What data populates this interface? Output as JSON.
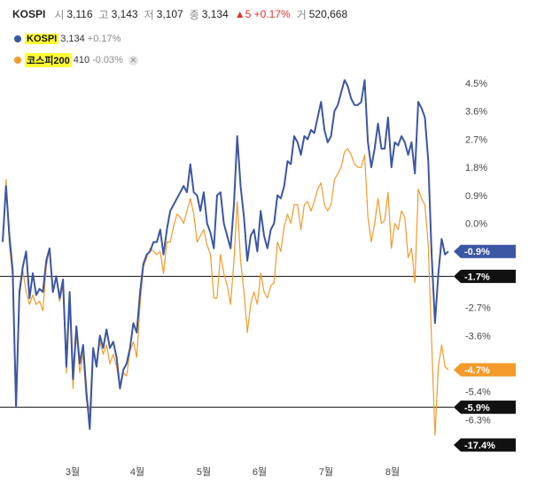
{
  "header": {
    "symbol": "KOSPI",
    "open_label": "시",
    "open": "3,116",
    "high_label": "고",
    "high": "3,143",
    "low_label": "저",
    "low": "3,107",
    "close_label": "종",
    "close": "3,134",
    "change": "▲5 +0.17%",
    "volume_label": "거",
    "volume": "520,668"
  },
  "legend": [
    {
      "name": "KOSPI",
      "value": "3,134",
      "change": "+0.17%",
      "color": "#3b56a3"
    },
    {
      "name": "코스피200",
      "value": "410",
      "change": "-0.03%",
      "color": "#f39a2b"
    }
  ],
  "colors": {
    "kospi": "#3b56a3",
    "kospi200": "#f39a2b",
    "dark": "#111111",
    "up": "#e0312e"
  },
  "chart_data": {
    "type": "line",
    "x_tick_labels": [
      "3월",
      "4월",
      "5월",
      "6월",
      "7월",
      "8월"
    ],
    "y_tick_labels": [
      "4.5%",
      "3.6%",
      "2.7%",
      "1.8%",
      "0.9%",
      "0.0%",
      "-2.7%",
      "-3.6%",
      "-5.4%",
      "-6.3%"
    ],
    "ylim": [
      -7.0,
      4.9
    ],
    "series": [
      {
        "name": "KOSPI",
        "color": "#3b56a3",
        "values": [
          -0.6,
          1.2,
          -0.4,
          -1.5,
          -5.9,
          -2.2,
          -1.4,
          -0.9,
          -2.4,
          -1.6,
          -2.3,
          -2.1,
          -2.2,
          -1.2,
          -0.8,
          -2.2,
          -1.7,
          -2.4,
          -1.8,
          -4.6,
          -2.2,
          -5.0,
          -3.3,
          -4.5,
          -3.9,
          -5.4,
          -6.6,
          -4.0,
          -4.6,
          -3.6,
          -4.0,
          -3.4,
          -4.0,
          -3.8,
          -4.3,
          -5.3,
          -4.7,
          -4.5,
          -4.0,
          -3.2,
          -3.5,
          -2.2,
          -1.3,
          -1.0,
          -0.9,
          -0.6,
          -0.6,
          -0.2,
          -1.0,
          -0.2,
          0.4,
          0.6,
          0.8,
          1.0,
          1.2,
          1.0,
          1.9,
          1.0,
          0.9,
          0.4,
          1.0,
          0.0,
          -0.3,
          -0.8,
          0.9,
          1.0,
          0.0,
          -0.4,
          -0.8,
          0.6,
          2.8,
          1.2,
          0.2,
          -1.2,
          -0.4,
          -0.2,
          -0.9,
          0.4,
          -0.4,
          -0.8,
          -0.2,
          0.0,
          0.9,
          0.8,
          1.2,
          2.0,
          1.9,
          2.8,
          2.6,
          2.2,
          2.8,
          2.7,
          3.0,
          2.9,
          3.4,
          3.9,
          3.0,
          2.6,
          2.8,
          3.6,
          3.8,
          4.2,
          4.6,
          4.4,
          4.0,
          3.8,
          3.8,
          3.9,
          4.6,
          2.6,
          1.8,
          2.4,
          3.2,
          2.4,
          2.4,
          3.4,
          1.8,
          2.6,
          2.5,
          2.8,
          2.6,
          2.2,
          2.6,
          1.6,
          3.9,
          3.7,
          3.4,
          2.0,
          -1.0,
          -3.2,
          -1.6,
          -0.5,
          -1.0,
          -0.9
        ]
      },
      {
        "name": "코스피200",
        "color": "#f39a2b",
        "values": [
          -0.6,
          1.4,
          -0.7,
          -1.7,
          -5.9,
          -2.4,
          -1.5,
          -2.2,
          -2.6,
          -2.3,
          -2.6,
          -2.5,
          -2.8,
          -1.4,
          -0.8,
          -2.2,
          -1.7,
          -2.5,
          -2.0,
          -4.8,
          -2.6,
          -5.3,
          -3.5,
          -4.8,
          -4.2,
          -5.7,
          -6.0,
          -4.0,
          -4.5,
          -3.8,
          -4.2,
          -3.9,
          -4.5,
          -4.2,
          -4.6,
          -5.3,
          -4.8,
          -4.9,
          -4.1,
          -3.8,
          -4.3,
          -2.6,
          -1.4,
          -1.1,
          -0.8,
          -0.9,
          -1.0,
          -0.9,
          -1.6,
          -0.6,
          -0.6,
          -0.1,
          0.3,
          0.2,
          0.0,
          0.4,
          0.8,
          0.3,
          -0.6,
          -0.4,
          -0.2,
          -0.7,
          -1.0,
          -2.4,
          -2.4,
          -1.0,
          -1.6,
          -2.0,
          -2.6,
          -1.2,
          0.7,
          -1.2,
          -2.2,
          -3.5,
          -2.6,
          -2.2,
          -2.6,
          -1.6,
          -2.2,
          -2.4,
          -2.0,
          -1.9,
          -0.6,
          -0.9,
          -0.1,
          0.3,
          0.0,
          0.6,
          0.6,
          -0.2,
          0.6,
          0.7,
          0.4,
          0.7,
          1.1,
          1.3,
          0.6,
          0.4,
          0.6,
          1.4,
          1.6,
          1.8,
          2.3,
          2.4,
          2.2,
          1.9,
          1.8,
          1.8,
          2.2,
          0.2,
          -0.6,
          0.0,
          0.8,
          0.0,
          0.1,
          1.0,
          -0.8,
          0.0,
          -0.2,
          0.4,
          0.2,
          -1.1,
          -0.8,
          -1.9,
          1.1,
          0.8,
          0.6,
          -0.7,
          -3.8,
          -6.8,
          -4.6,
          -3.9,
          -4.6,
          -4.7
        ]
      }
    ],
    "reference_lines": [
      {
        "value": -1.7,
        "label": "-1.7%"
      },
      {
        "value": -5.9,
        "label": "-5.9%"
      }
    ],
    "y_markers": [
      {
        "label": "-0.9%",
        "color": "#3b56a3",
        "value": -0.9
      },
      {
        "label": "-1.7%",
        "color": "#111111",
        "value": -1.7
      },
      {
        "label": "-4.7%",
        "color": "#f39a2b",
        "value": -4.7
      },
      {
        "label": "-5.9%",
        "color": "#111111",
        "value": -5.9
      },
      {
        "label": "-17.4%",
        "color": "#111111",
        "value": null
      }
    ],
    "grid": false,
    "legend_position": "top-left"
  }
}
